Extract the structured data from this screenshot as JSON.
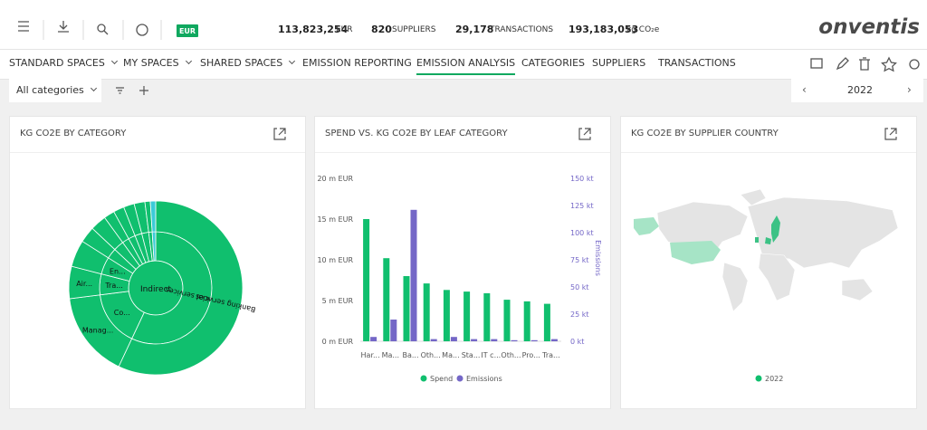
{
  "header": {
    "currency_badge": "EUR",
    "stats": [
      {
        "value": "113,823,254",
        "unit": "EUR"
      },
      {
        "value": "820",
        "unit": "SUPPLIERS"
      },
      {
        "value": "29,178",
        "unit": "TRANSACTIONS"
      },
      {
        "value": "193,183,053",
        "unit": "kg CO₂e"
      }
    ],
    "logo": "onventis"
  },
  "nav": {
    "items": [
      "STANDARD SPACES",
      "MY SPACES",
      "SHARED SPACES",
      "EMISSION REPORTING",
      "EMISSION ANALYSIS",
      "CATEGORIES",
      "SUPPLIERS",
      "TRANSACTIONS"
    ],
    "active": 4
  },
  "toolbar": {
    "filter": "All categories",
    "year": "2022"
  },
  "chart_data": [
    {
      "type": "sunburst",
      "title": "KG CO2E BY CATEGORY",
      "color": "#10bf6e",
      "center": {
        "label": "Indirect",
        "value": 100
      },
      "rings": [
        [
          {
            "label": "Financial services",
            "value": 57
          },
          {
            "label": "Co...",
            "value": 16
          },
          {
            "label": "Tra...",
            "value": 6
          },
          {
            "label": "En...",
            "value": 5
          },
          {
            "label": null,
            "value": 3
          },
          {
            "label": null,
            "value": 3
          },
          {
            "label": null,
            "value": 2
          },
          {
            "label": null,
            "value": 2
          },
          {
            "label": null,
            "value": 2
          },
          {
            "label": null,
            "value": 2
          },
          {
            "label": null,
            "value": 1
          },
          {
            "label": null,
            "value": 1,
            "color": "#3ccbd8"
          }
        ],
        [
          {
            "label": "Banking services",
            "value": 57
          },
          {
            "label": "Manag...",
            "value": 16
          },
          {
            "label": "Air...",
            "value": 6
          },
          {
            "label": null,
            "value": 5
          },
          {
            "label": null,
            "value": 3
          },
          {
            "label": null,
            "value": 3
          },
          {
            "label": null,
            "value": 2
          },
          {
            "label": null,
            "value": 2
          },
          {
            "label": null,
            "value": 2
          },
          {
            "label": null,
            "value": 2
          },
          {
            "label": null,
            "value": 1
          },
          {
            "label": null,
            "value": 1,
            "color": "#3ccbd8"
          }
        ]
      ]
    },
    {
      "type": "bar",
      "title": "SPEND VS. KG CO2E BY LEAF CATEGORY",
      "y2_label": "Emissions",
      "categories": [
        "Har...",
        "Ma...",
        "Ba...",
        "Oth...",
        "Ma...",
        "Sta...",
        "IT c...",
        "Oth...",
        "Pro...",
        "Tra..."
      ],
      "series": [
        {
          "name": "Spend",
          "color": "#10bf6e",
          "values": [
            15.0,
            10.2,
            8.0,
            7.1,
            6.3,
            6.1,
            5.9,
            5.1,
            4.9,
            4.6
          ]
        },
        {
          "name": "Emissions",
          "color": "#7467c7",
          "axis": "y2",
          "values": [
            4,
            20,
            121,
            2,
            4,
            2,
            2,
            1,
            1,
            2
          ]
        }
      ],
      "ylim": [
        0,
        20
      ],
      "yticks": [
        {
          "value": 0,
          "label": "0 m EUR"
        },
        {
          "value": 5,
          "label": "5 m EUR"
        },
        {
          "value": 10,
          "label": "10 m EUR"
        },
        {
          "value": 15,
          "label": "15 m EUR"
        },
        {
          "value": 20,
          "label": "20 m EUR"
        }
      ],
      "y2lim": [
        0,
        150
      ],
      "y2ticks": [
        {
          "value": 0,
          "label": "0 kt"
        },
        {
          "value": 25,
          "label": "25 kt"
        },
        {
          "value": 50,
          "label": "50 kt"
        },
        {
          "value": 75,
          "label": "75 kt"
        },
        {
          "value": 100,
          "label": "100 kt"
        },
        {
          "value": 125,
          "label": "125 kt"
        },
        {
          "value": 150,
          "label": "150 kt"
        }
      ],
      "grid": false
    },
    {
      "type": "map",
      "title": "KG CO2E BY SUPPLIER COUNTRY",
      "series": [
        {
          "name": "2022",
          "color": "#10bf6e"
        }
      ]
    }
  ]
}
